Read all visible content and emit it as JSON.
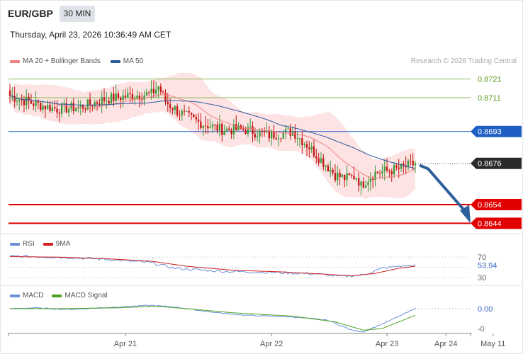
{
  "header": {
    "symbol": "EUR/GBP",
    "timeframe": "30 MIN",
    "datetime": "Thursday, April 23, 2026 10:36:49 AM CET"
  },
  "legend": {
    "ma20": "MA 20 + Bollinger Bands",
    "ma50": "MA 50",
    "credit": "Research © 2026 Trading Central",
    "rsi": "RSI",
    "rsi_ma": "9MA",
    "macd": "MACD",
    "macd_signal": "MACD Signal"
  },
  "colors": {
    "bull": "#3a9a3a",
    "bear": "#c41414",
    "ma20": "#f08080",
    "ma50": "#2c5aa0",
    "bollinger_fill": "#fde0e0",
    "resistance": "#8fbc5a",
    "pivot": "#1f5fc4",
    "support": "#e00000",
    "current": "#2b2b2b",
    "arrow": "#2d5f9a",
    "rsi": "#6a8fd8",
    "rsi_ma": "#d02020",
    "macd": "#6a8fd8",
    "macd_signal": "#4aa020"
  },
  "chart_data": [
    {
      "type": "candlestick",
      "title": "EUR/GBP 30 MIN",
      "x_labels": [
        "Apr 21",
        "Apr 22",
        "Apr 23",
        "Apr 24",
        "May 11"
      ],
      "ylim": [
        0.864,
        0.8725
      ],
      "levels": [
        {
          "label": "0.8721",
          "value": 0.8721,
          "kind": "resistance"
        },
        {
          "label": "0.8711",
          "value": 0.8711,
          "kind": "resistance"
        },
        {
          "label": "0.8693",
          "value": 0.8693,
          "kind": "pivot"
        },
        {
          "label": "0.8676",
          "value": 0.8676,
          "kind": "current"
        },
        {
          "label": "0.8654",
          "value": 0.8654,
          "kind": "support"
        },
        {
          "label": "0.8644",
          "value": 0.8644,
          "kind": "support"
        }
      ],
      "price_keypoints": [
        [
          0,
          0.8712
        ],
        [
          10,
          0.8708
        ],
        [
          20,
          0.8705
        ],
        [
          30,
          0.8706
        ],
        [
          40,
          0.871
        ],
        [
          50,
          0.8712
        ],
        [
          60,
          0.8713
        ],
        [
          63,
          0.8717
        ],
        [
          66,
          0.8709
        ],
        [
          72,
          0.8703
        ],
        [
          80,
          0.8698
        ],
        [
          90,
          0.8694
        ],
        [
          100,
          0.8694
        ],
        [
          110,
          0.8691
        ],
        [
          120,
          0.8693
        ],
        [
          126,
          0.8686
        ],
        [
          132,
          0.8678
        ],
        [
          138,
          0.867
        ],
        [
          142,
          0.8668
        ],
        [
          147,
          0.8669
        ],
        [
          149,
          0.8664
        ],
        [
          151,
          0.8667
        ],
        [
          155,
          0.8671
        ],
        [
          165,
          0.8673
        ],
        [
          170,
          0.8675
        ],
        [
          172,
          0.8676
        ]
      ],
      "candle_count": 173,
      "projection": {
        "from": 0.8675,
        "to": 0.8644
      }
    },
    {
      "type": "line",
      "title": "RSI",
      "ylim": [
        20,
        80
      ],
      "tick_labels": [
        "70",
        "30"
      ],
      "current_value_label": "53.94",
      "current_value": 53.94,
      "rsi_keypoints": [
        [
          0,
          72
        ],
        [
          20,
          70
        ],
        [
          40,
          66
        ],
        [
          60,
          59
        ],
        [
          70,
          48
        ],
        [
          90,
          42
        ],
        [
          110,
          40
        ],
        [
          130,
          37
        ],
        [
          140,
          32
        ],
        [
          150,
          35
        ],
        [
          158,
          48
        ],
        [
          165,
          52
        ],
        [
          172,
          54
        ]
      ],
      "ma_keypoints": [
        [
          0,
          71
        ],
        [
          20,
          70
        ],
        [
          40,
          67
        ],
        [
          60,
          62
        ],
        [
          75,
          52
        ],
        [
          95,
          44
        ],
        [
          115,
          41
        ],
        [
          135,
          36
        ],
        [
          145,
          33
        ],
        [
          155,
          38
        ],
        [
          165,
          48
        ],
        [
          172,
          52
        ]
      ]
    },
    {
      "type": "line",
      "title": "MACD",
      "tick_labels": [
        "0.00",
        "-0"
      ],
      "macd_keypoints": [
        [
          0,
          0.0
        ],
        [
          10,
          0.0001
        ],
        [
          25,
          -0.0001
        ],
        [
          45,
          0.0002
        ],
        [
          60,
          0.0004
        ],
        [
          70,
          0.0002
        ],
        [
          85,
          -0.0004
        ],
        [
          100,
          -0.0008
        ],
        [
          120,
          -0.001
        ],
        [
          135,
          -0.0014
        ],
        [
          145,
          -0.0026
        ],
        [
          150,
          -0.0028
        ],
        [
          160,
          -0.0016
        ],
        [
          172,
          0.0
        ]
      ],
      "signal_keypoints": [
        [
          0,
          0.0
        ],
        [
          20,
          0.0
        ],
        [
          45,
          0.0001
        ],
        [
          62,
          0.0003
        ],
        [
          75,
          0.0
        ],
        [
          95,
          -0.0005
        ],
        [
          120,
          -0.0009
        ],
        [
          138,
          -0.0016
        ],
        [
          150,
          -0.0026
        ],
        [
          158,
          -0.0024
        ],
        [
          165,
          -0.0016
        ],
        [
          172,
          -0.0008
        ]
      ]
    }
  ]
}
